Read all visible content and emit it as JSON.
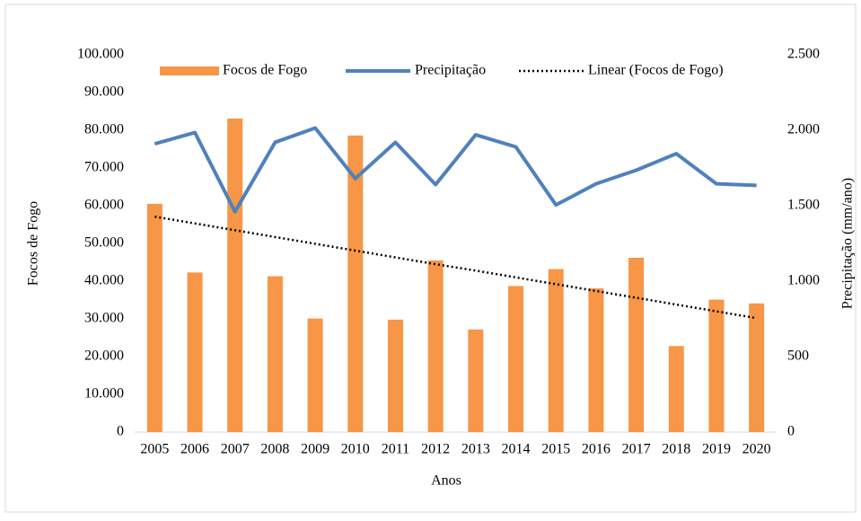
{
  "chart_data": {
    "type": "bar",
    "xlabel": "Anos",
    "ylabel": "Focos de Fogo",
    "y2label": "Precipitação (mm/ano)",
    "categories": [
      "2005",
      "2006",
      "2007",
      "2008",
      "2009",
      "2010",
      "2011",
      "2012",
      "2013",
      "2014",
      "2015",
      "2016",
      "2017",
      "2018",
      "2019",
      "2020"
    ],
    "series": [
      {
        "name": "Focos de Fogo",
        "type": "bar",
        "color": "#f79646",
        "values": [
          60500,
          42300,
          83100,
          41300,
          30100,
          78600,
          29800,
          45500,
          27200,
          38700,
          43200,
          38100,
          46200,
          22800,
          35100,
          34100
        ]
      },
      {
        "name": "Precipitação",
        "type": "line",
        "axis": "y2",
        "color": "#4f81bd",
        "values": [
          1910,
          1985,
          1460,
          1920,
          2015,
          1680,
          1920,
          1640,
          1970,
          1890,
          1505,
          1645,
          1735,
          1845,
          1645,
          1635
        ]
      },
      {
        "name": "Linear (Focos de Fogo)",
        "type": "trend",
        "color": "#000000",
        "values": [
          57100,
          55300,
          53500,
          51700,
          49900,
          48100,
          46300,
          44500,
          42800,
          41000,
          39200,
          37400,
          35600,
          33800,
          32000,
          30200
        ]
      }
    ],
    "ylim": [
      0,
      100000
    ],
    "yticks": [
      0,
      {
        "value": 10000,
        "label": "10.000"
      },
      {
        "value": 20000,
        "label": "20.000"
      },
      {
        "value": 30000,
        "label": "30.000"
      },
      {
        "value": 40000,
        "label": "40.000"
      },
      {
        "value": 50000,
        "label": "50.000"
      },
      {
        "value": 60000,
        "label": "60.000"
      },
      {
        "value": 70000,
        "label": "70.000"
      },
      {
        "value": 80000,
        "label": "80.000"
      },
      {
        "value": 90000,
        "label": "90.000"
      },
      {
        "value": 100000,
        "label": "100.000"
      }
    ],
    "y2lim": [
      0,
      2500
    ],
    "y2ticks": [
      0,
      500,
      {
        "value": 1000,
        "label": "1.000"
      },
      {
        "value": 1500,
        "label": "1.500"
      },
      {
        "value": 2000,
        "label": "2.000"
      },
      {
        "value": 2500,
        "label": "2.500"
      }
    ],
    "legend": "top"
  }
}
